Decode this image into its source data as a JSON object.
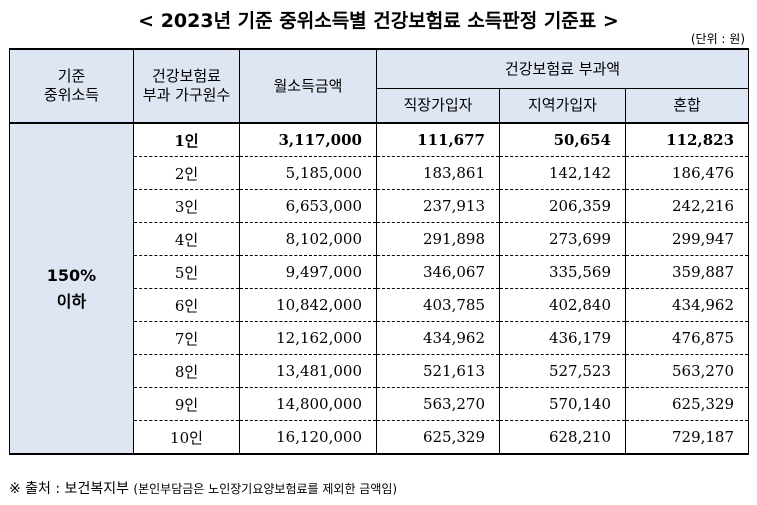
{
  "title": "< 2023년 기준 중위소득별 건강보험료 소득판정 기준표 >",
  "unit": "(단위 : 원)",
  "headers": {
    "median_line1": "기준",
    "median_line2": "중위소득",
    "household_line1": "건강보험료",
    "household_line2": "부과 가구원수",
    "income": "월소득금액",
    "premium_group": "건강보험료 부과액",
    "employee": "직장가입자",
    "regional": "지역가입자",
    "mixed": "혼합"
  },
  "category": {
    "line1": "150%",
    "line2": "이하"
  },
  "rows": [
    {
      "persons": "1인",
      "income": "3,117,000",
      "employee": "111,677",
      "regional": "50,654",
      "mixed": "112,823"
    },
    {
      "persons": "2인",
      "income": "5,185,000",
      "employee": "183,861",
      "regional": "142,142",
      "mixed": "186,476"
    },
    {
      "persons": "3인",
      "income": "6,653,000",
      "employee": "237,913",
      "regional": "206,359",
      "mixed": "242,216"
    },
    {
      "persons": "4인",
      "income": "8,102,000",
      "employee": "291,898",
      "regional": "273,699",
      "mixed": "299,947"
    },
    {
      "persons": "5인",
      "income": "9,497,000",
      "employee": "346,067",
      "regional": "335,569",
      "mixed": "359,887"
    },
    {
      "persons": "6인",
      "income": "10,842,000",
      "employee": "403,785",
      "regional": "402,840",
      "mixed": "434,962"
    },
    {
      "persons": "7인",
      "income": "12,162,000",
      "employee": "434,962",
      "regional": "436,179",
      "mixed": "476,875"
    },
    {
      "persons": "8인",
      "income": "13,481,000",
      "employee": "521,613",
      "regional": "527,523",
      "mixed": "563,270"
    },
    {
      "persons": "9인",
      "income": "14,800,000",
      "employee": "563,270",
      "regional": "570,140",
      "mixed": "625,329"
    },
    {
      "persons": "10인",
      "income": "16,120,000",
      "employee": "625,329",
      "regional": "628,210",
      "mixed": "729,187"
    }
  ],
  "note": {
    "main": "※ 출처 : 보건복지부",
    "sub": "(본인부담금은 노인장기요양보험료를 제외한 금액임)"
  }
}
